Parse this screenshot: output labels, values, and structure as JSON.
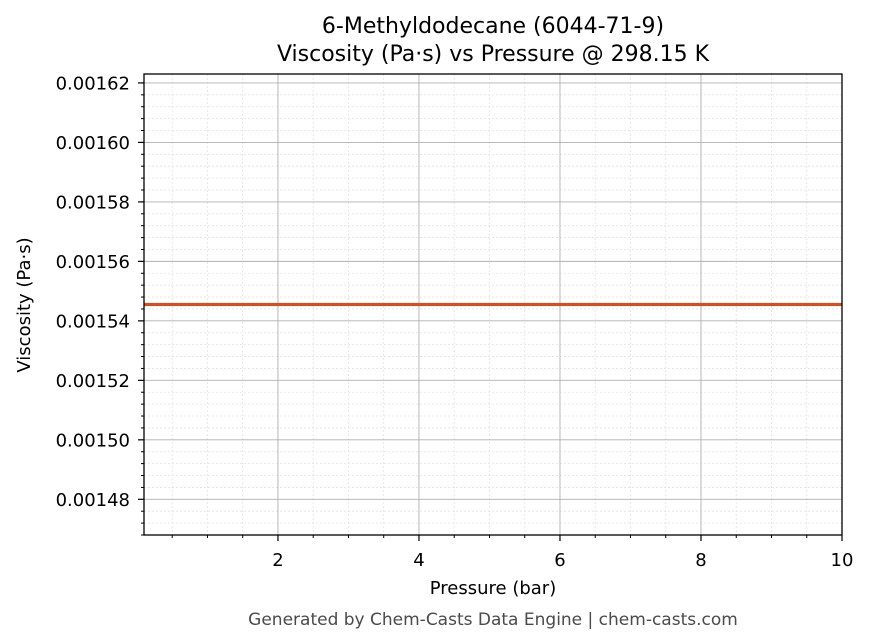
{
  "chart_data": {
    "type": "line",
    "title_line1": "6-Methyldodecane (6044-71-9)",
    "title_line2": "Viscosity (Pa·s) vs Pressure @ 298.15 K",
    "xlabel": "Pressure (bar)",
    "ylabel": "Viscosity (Pa·s)",
    "xlim": [
      0.1,
      10
    ],
    "ylim": [
      0.001468,
      0.001623
    ],
    "x_ticks": [
      2,
      4,
      6,
      8,
      10
    ],
    "x_tick_labels": [
      "2",
      "4",
      "6",
      "8",
      "10"
    ],
    "y_ticks": [
      0.00148,
      0.0015,
      0.00152,
      0.00154,
      0.00156,
      0.00158,
      0.0016,
      0.00162
    ],
    "y_tick_labels": [
      "0.00148",
      "0.00150",
      "0.00152",
      "0.00154",
      "0.00156",
      "0.00158",
      "0.00160",
      "0.00162"
    ],
    "grid": true,
    "series": [
      {
        "color": "#c8532a",
        "x": [
          0.1,
          10
        ],
        "y": [
          0.0015455,
          0.0015455
        ]
      }
    ]
  },
  "footer": "Generated by Chem-Casts Data Engine | chem-casts.com",
  "colors": {
    "line": "#c8532a",
    "major_grid": "#b0b0b0",
    "minor_grid": "#e2e2e2",
    "footer_text": "#4a4a4a"
  }
}
